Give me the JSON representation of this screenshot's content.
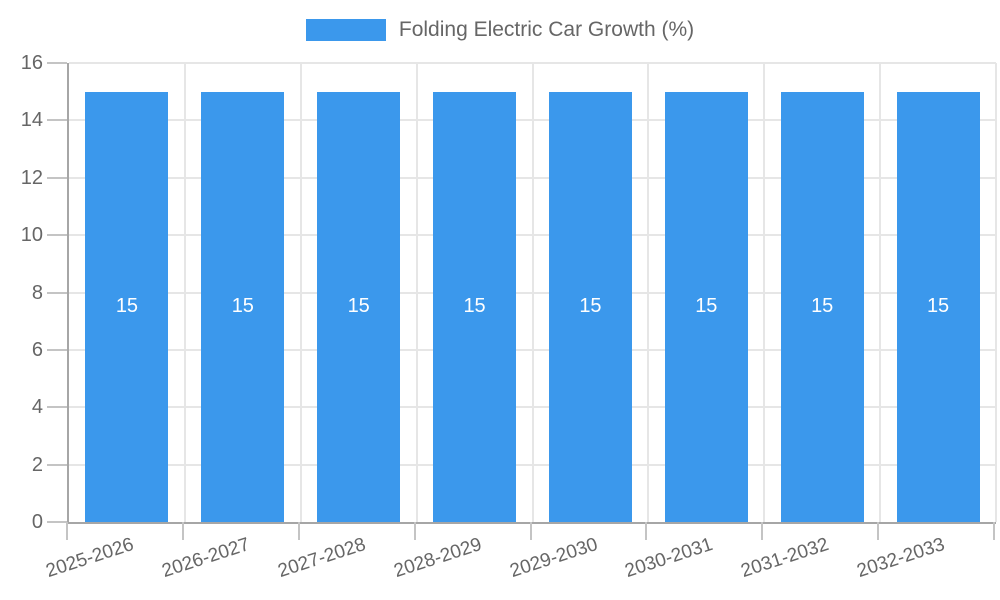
{
  "legend": {
    "label": "Folding Electric Car Growth (%)"
  },
  "chart_data": {
    "type": "bar",
    "title": "Folding Electric Car Growth (%)",
    "categories": [
      "2025-2026",
      "2026-2027",
      "2027-2028",
      "2028-2029",
      "2029-2030",
      "2030-2031",
      "2031-2032",
      "2032-2033"
    ],
    "series": [
      {
        "name": "Folding Electric Car Growth (%)",
        "values": [
          15,
          15,
          15,
          15,
          15,
          15,
          15,
          15
        ]
      }
    ],
    "value_labels": [
      "15",
      "15",
      "15",
      "15",
      "15",
      "15",
      "15",
      "15"
    ],
    "xlabel": "",
    "ylabel": "",
    "ylim": [
      0,
      16
    ],
    "yticks": [
      0,
      2,
      4,
      6,
      8,
      10,
      12,
      14,
      16
    ],
    "grid": true,
    "legend_position": "top",
    "x_label_rotation_deg": -18,
    "colors": {
      "bar": "#3b98ec",
      "text": "#666666",
      "grid": "#e6e6e6",
      "axis": "#a6a6a6",
      "tick": "#c4c4c4",
      "value_label": "#ffffff"
    }
  }
}
